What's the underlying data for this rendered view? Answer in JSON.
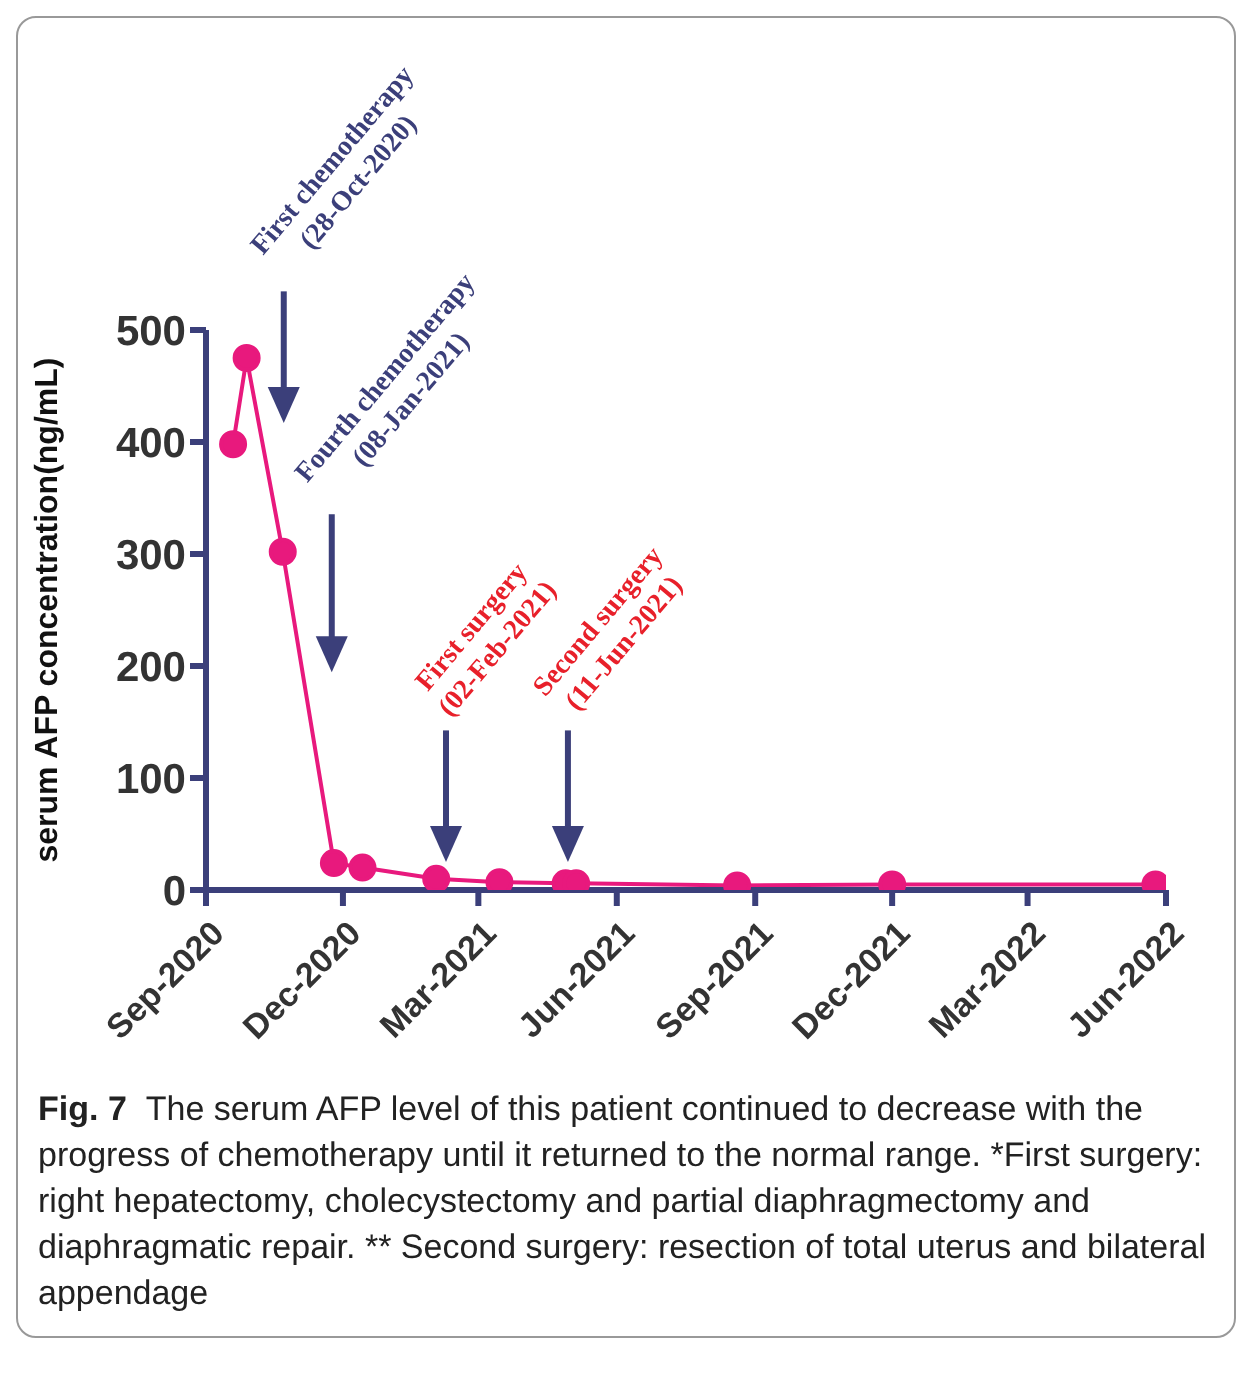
{
  "chart_data": {
    "type": "line",
    "ylabel": "serum AFP concentration(ng/mL)",
    "x": [
      "2020-09-19",
      "2020-09-28",
      "2020-10-22",
      "2020-11-25",
      "2020-12-14",
      "2021-02-01",
      "2021-03-15",
      "2021-04-28",
      "2021-05-05",
      "2021-08-20",
      "2021-12-01",
      "2022-05-25"
    ],
    "series": [
      {
        "color": "#e8197d",
        "values": [
          398,
          475,
          302,
          24,
          20,
          10,
          7,
          6,
          6,
          4,
          5,
          5
        ]
      }
    ],
    "xlim": [
      "2020-09-01",
      "2022-06-01"
    ],
    "xticks": [
      {
        "value": "2020-09-01",
        "label": "Sep-2020"
      },
      {
        "value": "2020-12-01",
        "label": "Dec-2020"
      },
      {
        "value": "2021-03-01",
        "label": "Mar-2021"
      },
      {
        "value": "2021-06-01",
        "label": "Jun-2021"
      },
      {
        "value": "2021-09-01",
        "label": "Sep-2021"
      },
      {
        "value": "2021-12-01",
        "label": "Dec-2021"
      },
      {
        "value": "2022-03-01",
        "label": "Mar-2022"
      },
      {
        "value": "2022-06-01",
        "label": "Jun-2022"
      }
    ],
    "ylim": [
      0,
      500
    ],
    "yticks": [
      0,
      100,
      200,
      300,
      400,
      500
    ],
    "marker": "circle",
    "line_style": "solid",
    "annotations": [
      "First chemotherapy\n(28-Oct-2020)",
      "Fourth chemotherapy\n(08-Jan-2021)",
      "First surgery\n(02-Feb-2021)",
      "Second surgery\n(11-Jun-2021)",
      "Fig. 7  The serum AFP level of this patient continued to decrease with the progress of chemotherapy until it returned to the normal range. *First surgery: right hepatectomy, cholecystectomy and partial diaphragmectomy and diaphragmatic repair. ** Second surgery: resection of total uterus and bilateral appendage"
    ]
  }
}
